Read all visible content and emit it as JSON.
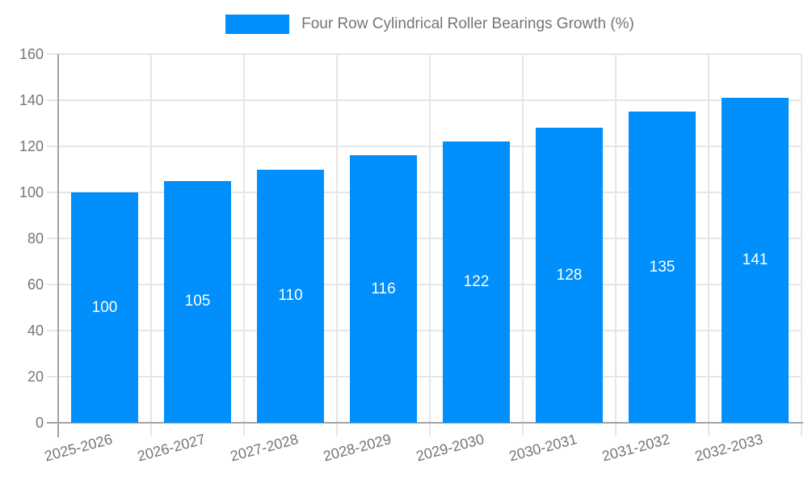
{
  "legend": {
    "label": "Four Row Cylindrical Roller Bearings Growth (%)"
  },
  "chart_data": {
    "type": "bar",
    "title": "Four Row Cylindrical Roller Bearings Growth (%)",
    "categories": [
      "2025-2026",
      "2026-2027",
      "2027-2028",
      "2028-2029",
      "2029-2030",
      "2030-2031",
      "2031-2032",
      "2032-2033"
    ],
    "series": [
      {
        "name": "Four Row Cylindrical Roller Bearings Growth (%)",
        "values": [
          100,
          105,
          110,
          116,
          122,
          128,
          135,
          141
        ]
      }
    ],
    "bar_value_labels": [
      "100",
      "105",
      "110",
      "116",
      "122",
      "128",
      "135",
      "141"
    ],
    "xlabel": "",
    "ylabel": "",
    "ylim": [
      0,
      160
    ],
    "ytick_step": 20,
    "yticks": [
      0,
      20,
      40,
      60,
      80,
      100,
      120,
      140,
      160
    ],
    "grid": true,
    "legend_position": "top-center",
    "value_label_position": "inside-center",
    "colors": {
      "bar": "#008FFB",
      "grid": "#E6E6E6",
      "axis": "#A3A3A3",
      "tick_label": "#757575",
      "legend_text": "#757575",
      "value_label": "#FFFFFF",
      "background": "#FFFFFF"
    }
  }
}
